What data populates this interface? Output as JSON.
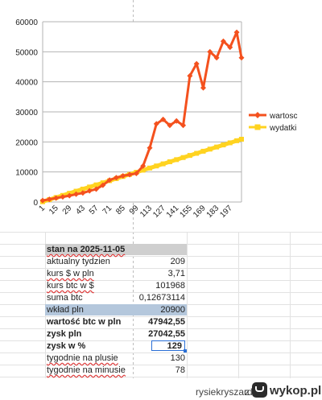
{
  "chart_data": {
    "type": "line",
    "x": [
      1,
      8,
      15,
      22,
      29,
      36,
      43,
      50,
      57,
      64,
      71,
      78,
      85,
      92,
      99,
      106,
      113,
      120,
      127,
      134,
      141,
      148,
      155,
      162,
      169,
      176,
      183,
      190,
      197,
      204,
      209
    ],
    "x_tick_labels": [
      "1",
      "15",
      "29",
      "43",
      "57",
      "71",
      "85",
      "99",
      "113",
      "127",
      "141",
      "155",
      "169",
      "183",
      "197"
    ],
    "y_tick_labels": [
      "0",
      "10000",
      "20000",
      "30000",
      "40000",
      "50000",
      "60000"
    ],
    "ylim": [
      0,
      60000
    ],
    "xlim": [
      1,
      209
    ],
    "grid": true,
    "legend_position": "right",
    "series": [
      {
        "name": "wartosc",
        "color": "#f4511e",
        "marker": "diamond",
        "values": [
          500,
          900,
          1300,
          1700,
          2100,
          2600,
          3000,
          3700,
          4300,
          5600,
          7300,
          8100,
          8700,
          9100,
          9500,
          12000,
          18000,
          26000,
          27500,
          25500,
          27000,
          25500,
          42000,
          46000,
          38000,
          50000,
          48000,
          53500,
          51500,
          56500,
          48000
        ]
      },
      {
        "name": "wydatki",
        "color": "#ffd320",
        "marker": "square",
        "values": [
          100,
          800,
          1500,
          2200,
          2900,
          3600,
          4300,
          5000,
          5700,
          6400,
          7100,
          7800,
          8500,
          9200,
          9900,
          10600,
          11300,
          12000,
          12700,
          13400,
          14100,
          14800,
          15500,
          16200,
          16900,
          17600,
          18300,
          19000,
          19700,
          20400,
          20900
        ]
      }
    ]
  },
  "table": {
    "header": "stan na 2025-11-05",
    "rows": [
      {
        "label": "aktualny tydzien",
        "value": "209"
      },
      {
        "label": "kurs $ w pln",
        "value": "3,71"
      },
      {
        "label": "kurs btc w $",
        "value": "101968"
      },
      {
        "label": "suma btc",
        "value": "0,12673114"
      },
      {
        "label": "wkład pln",
        "value": "20900"
      },
      {
        "label": "wartość btc w pln",
        "value": "47942,55"
      },
      {
        "label": "zysk pln",
        "value": "27042,55"
      },
      {
        "label": "zysk w %",
        "value": "129"
      },
      {
        "label": "tygodnie na plusie",
        "value": "130"
      },
      {
        "label": "tygodnie na minusie",
        "value": "78"
      }
    ]
  },
  "watermark": {
    "user": "rysiekryszard",
    "joiner": "z",
    "brand": "wykop.pl",
    "icon": "wykop-logo-icon"
  }
}
